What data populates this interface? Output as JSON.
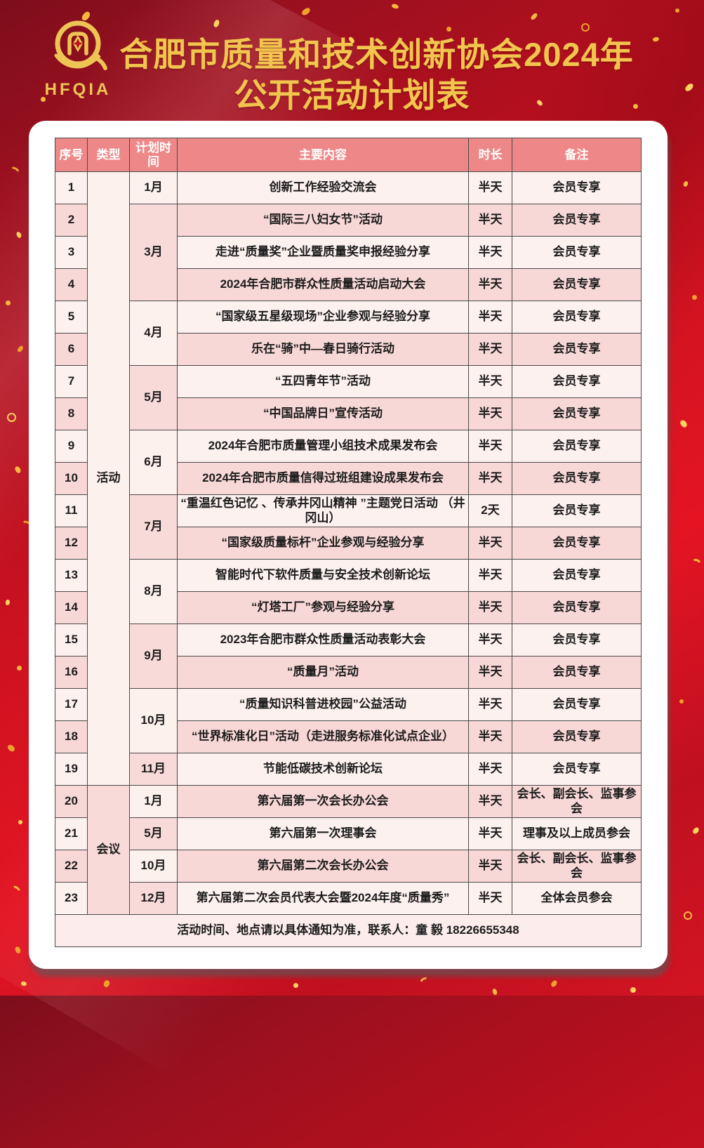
{
  "poster": {
    "logo_text": "HFQIA",
    "title_line1": "合肥市质量和技术创新协会2024年",
    "title_line2": "公开活动计划表"
  },
  "colors": {
    "background_red": "#d51321",
    "title_gold": "#f2c54f",
    "logo_gold": "#eec455",
    "header_bg": "#ee8888",
    "row_light": "#fdf1f0",
    "row_dark": "#f8d8d7",
    "border": "#4a4a4a"
  },
  "table": {
    "columns": [
      "序号",
      "类型",
      "计划时间",
      "主要内容",
      "时长",
      "备注"
    ],
    "type_groups": [
      {
        "label": "活动",
        "row_count": 19,
        "shade": "light"
      },
      {
        "label": "会议",
        "row_count": 4,
        "shade": "dark"
      }
    ],
    "month_groups": [
      {
        "label": "1月",
        "row_count": 1,
        "shade": "light"
      },
      {
        "label": "3月",
        "row_count": 3,
        "shade": "dark"
      },
      {
        "label": "4月",
        "row_count": 2,
        "shade": "light"
      },
      {
        "label": "5月",
        "row_count": 2,
        "shade": "dark"
      },
      {
        "label": "6月",
        "row_count": 2,
        "shade": "light"
      },
      {
        "label": "7月",
        "row_count": 2,
        "shade": "dark"
      },
      {
        "label": "8月",
        "row_count": 2,
        "shade": "light"
      },
      {
        "label": "9月",
        "row_count": 2,
        "shade": "dark"
      },
      {
        "label": "10月",
        "row_count": 2,
        "shade": "light"
      },
      {
        "label": "11月",
        "row_count": 1,
        "shade": "dark"
      },
      {
        "label": "1月",
        "row_count": 1,
        "shade": "light"
      },
      {
        "label": "5月",
        "row_count": 1,
        "shade": "dark"
      },
      {
        "label": "10月",
        "row_count": 1,
        "shade": "light"
      },
      {
        "label": "12月",
        "row_count": 1,
        "shade": "dark"
      }
    ],
    "rows": [
      {
        "no": "1",
        "content": "创新工作经验交流会",
        "duration": "半天",
        "note": "会员专享"
      },
      {
        "no": "2",
        "content": "“国际三八妇女节”活动",
        "duration": "半天",
        "note": "会员专享"
      },
      {
        "no": "3",
        "content": "走进“质量奖”企业暨质量奖申报经验分享",
        "duration": "半天",
        "note": "会员专享"
      },
      {
        "no": "4",
        "content": "2024年合肥市群众性质量活动启动大会",
        "duration": "半天",
        "note": "会员专享"
      },
      {
        "no": "5",
        "content": "“国家级五星级现场”企业参观与经验分享",
        "duration": "半天",
        "note": "会员专享"
      },
      {
        "no": "6",
        "content": "乐在“骑”中—春日骑行活动",
        "duration": "半天",
        "note": "会员专享"
      },
      {
        "no": "7",
        "content": "“五四青年节”活动",
        "duration": "半天",
        "note": "会员专享"
      },
      {
        "no": "8",
        "content": "“中国品牌日”宣传活动",
        "duration": "半天",
        "note": "会员专享"
      },
      {
        "no": "9",
        "content": "2024年合肥市质量管理小组技术成果发布会",
        "duration": "半天",
        "note": "会员专享"
      },
      {
        "no": "10",
        "content": "2024年合肥市质量信得过班组建设成果发布会",
        "duration": "半天",
        "note": "会员专享"
      },
      {
        "no": "11",
        "content": "“重温红色记忆 、传承井冈山精神 ”主题党日活动 （井冈山）",
        "duration": "2天",
        "note": "会员专享"
      },
      {
        "no": "12",
        "content": "“国家级质量标杆”企业参观与经验分享",
        "duration": "半天",
        "note": "会员专享"
      },
      {
        "no": "13",
        "content": "智能时代下软件质量与安全技术创新论坛",
        "duration": "半天",
        "note": "会员专享"
      },
      {
        "no": "14",
        "content": "“灯塔工厂”参观与经验分享",
        "duration": "半天",
        "note": "会员专享"
      },
      {
        "no": "15",
        "content": "2023年合肥市群众性质量活动表彰大会",
        "duration": "半天",
        "note": "会员专享"
      },
      {
        "no": "16",
        "content": "“质量月”活动",
        "duration": "半天",
        "note": "会员专享"
      },
      {
        "no": "17",
        "content": "“质量知识科普进校园”公益活动",
        "duration": "半天",
        "note": "会员专享"
      },
      {
        "no": "18",
        "content": "“世界标准化日”活动（走进服务标准化试点企业）",
        "duration": "半天",
        "note": "会员专享"
      },
      {
        "no": "19",
        "content": "节能低碳技术创新论坛",
        "duration": "半天",
        "note": "会员专享"
      },
      {
        "no": "20",
        "content": "第六届第一次会长办公会",
        "duration": "半天",
        "note": "会长、副会长、监事参会"
      },
      {
        "no": "21",
        "content": "第六届第一次理事会",
        "duration": "半天",
        "note": "理事及以上成员参会"
      },
      {
        "no": "22",
        "content": "第六届第二次会长办公会",
        "duration": "半天",
        "note": "会长、副会长、监事参会"
      },
      {
        "no": "23",
        "content": "第六届第二次会员代表大会暨2024年度“质量秀”",
        "duration": "半天",
        "note": "全体会员参会"
      }
    ]
  },
  "footer": {
    "note": "活动时间、地点请以具体通知为准，联系人：童  毅 18226655348"
  }
}
